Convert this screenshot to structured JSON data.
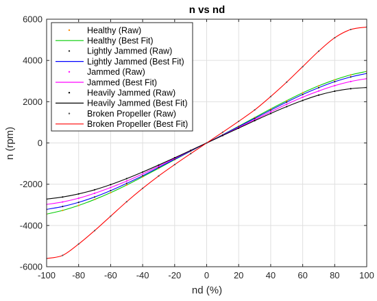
{
  "chart_data": {
    "type": "line",
    "title": "n vs nd",
    "xlabel": "nd (%)",
    "ylabel": "n (rpm)",
    "xlim": [
      -100,
      100
    ],
    "ylim": [
      -6000,
      6000
    ],
    "xticks": [
      -100,
      -80,
      -60,
      -40,
      -20,
      0,
      20,
      40,
      60,
      80,
      100
    ],
    "yticks": [
      -6000,
      -4000,
      -2000,
      0,
      2000,
      4000,
      6000
    ],
    "grid": true,
    "legend_position": "top-left",
    "x": [
      -100,
      -90,
      -80,
      -70,
      -60,
      -50,
      -40,
      -30,
      -20,
      -10,
      0,
      10,
      20,
      30,
      40,
      50,
      60,
      70,
      80,
      90,
      100
    ],
    "series": [
      {
        "name": "Healthy (Raw)",
        "style": "dots",
        "color": "#ff8c00",
        "values": [
          -3450,
          -3270,
          -3030,
          -2740,
          -2410,
          -2040,
          -1640,
          -1230,
          -810,
          -400,
          0,
          400,
          810,
          1230,
          1650,
          2050,
          2430,
          2770,
          3060,
          3300,
          3470
        ]
      },
      {
        "name": "Healthy (Best Fit)",
        "style": "line",
        "color": "#00cc00",
        "values": [
          -3450,
          -3270,
          -3030,
          -2740,
          -2410,
          -2040,
          -1640,
          -1230,
          -810,
          -400,
          0,
          400,
          810,
          1230,
          1650,
          2050,
          2430,
          2770,
          3060,
          3300,
          3470
        ]
      },
      {
        "name": "Lightly Jammed (Raw)",
        "style": "dots",
        "color": "#202020",
        "values": [
          -3220,
          -3080,
          -2880,
          -2620,
          -2310,
          -1960,
          -1590,
          -1190,
          -790,
          -390,
          0,
          390,
          790,
          1190,
          1590,
          1980,
          2350,
          2680,
          2970,
          3200,
          3370
        ]
      },
      {
        "name": "Lightly Jammed (Best Fit)",
        "style": "line",
        "color": "#0000ff",
        "values": [
          -3220,
          -3080,
          -2880,
          -2620,
          -2310,
          -1960,
          -1590,
          -1190,
          -790,
          -390,
          0,
          390,
          790,
          1190,
          1590,
          1980,
          2350,
          2680,
          2970,
          3200,
          3370
        ]
      },
      {
        "name": "Jammed (Raw)",
        "style": "dots",
        "color": "#ff00ff",
        "values": [
          -2980,
          -2860,
          -2680,
          -2440,
          -2160,
          -1850,
          -1500,
          -1130,
          -750,
          -370,
          0,
          370,
          750,
          1130,
          1510,
          1880,
          2220,
          2520,
          2780,
          2980,
          3120
        ]
      },
      {
        "name": "Jammed (Best Fit)",
        "style": "line",
        "color": "#ff00ff",
        "values": [
          -2980,
          -2860,
          -2680,
          -2440,
          -2160,
          -1850,
          -1500,
          -1130,
          -750,
          -370,
          0,
          370,
          750,
          1130,
          1510,
          1880,
          2220,
          2520,
          2780,
          2980,
          3120
        ]
      },
      {
        "name": "Heavily Jammed (Raw)",
        "style": "dots",
        "color": "#000000",
        "values": [
          -2720,
          -2620,
          -2470,
          -2270,
          -2020,
          -1730,
          -1410,
          -1070,
          -720,
          -360,
          0,
          360,
          720,
          1080,
          1430,
          1760,
          2060,
          2320,
          2510,
          2630,
          2690
        ]
      },
      {
        "name": "Heavily Jammed (Best Fit)",
        "style": "line",
        "color": "#000000",
        "values": [
          -2720,
          -2620,
          -2470,
          -2270,
          -2020,
          -1730,
          -1410,
          -1070,
          -720,
          -360,
          0,
          360,
          720,
          1080,
          1430,
          1760,
          2060,
          2320,
          2510,
          2630,
          2690
        ]
      },
      {
        "name": "Broken Propeller (Raw)",
        "style": "dots",
        "color": "#505050",
        "values": [
          -5600,
          -5450,
          -4900,
          -4250,
          -3550,
          -2850,
          -2200,
          -1600,
          -1050,
          -520,
          0,
          520,
          1050,
          1600,
          2250,
          2950,
          3700,
          4450,
          5100,
          5500,
          5620
        ]
      },
      {
        "name": "Broken Propeller (Best Fit)",
        "style": "line",
        "color": "#ff0000",
        "values": [
          -5600,
          -5450,
          -4900,
          -4250,
          -3550,
          -2850,
          -2200,
          -1600,
          -1050,
          -520,
          0,
          520,
          1050,
          1600,
          2250,
          2950,
          3700,
          4450,
          5100,
          5500,
          5620
        ]
      }
    ]
  }
}
